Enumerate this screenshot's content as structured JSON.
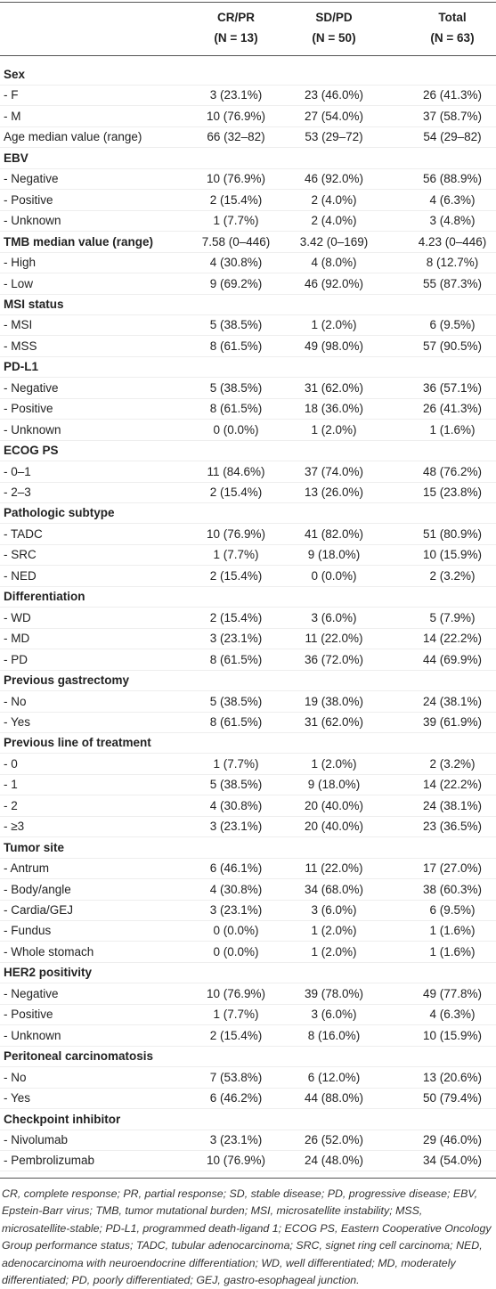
{
  "table": {
    "header": [
      [
        "",
        ""
      ],
      [
        "CR/PR",
        "(N = 13)"
      ],
      [
        "SD/PD",
        "(N = 50)"
      ],
      [
        "Total",
        "(N = 63)"
      ]
    ],
    "rows": [
      {
        "heading": true,
        "cells": [
          "Sex"
        ]
      },
      {
        "cells": [
          "- F",
          "3 (23.1%)",
          "23 (46.0%)",
          "26 (41.3%)"
        ]
      },
      {
        "cells": [
          "- M",
          "10 (76.9%)",
          "27 (54.0%)",
          "37 (58.7%)"
        ]
      },
      {
        "cells": [
          "Age median value (range)",
          "66 (32–82)",
          "53 (29–72)",
          "54 (29–82)"
        ]
      },
      {
        "heading": true,
        "cells": [
          "EBV"
        ]
      },
      {
        "cells": [
          "- Negative",
          "10 (76.9%)",
          "46 (92.0%)",
          "56 (88.9%)"
        ]
      },
      {
        "cells": [
          "- Positive",
          "2 (15.4%)",
          "2 (4.0%)",
          "4 (6.3%)"
        ]
      },
      {
        "cells": [
          "- Unknown",
          "1 (7.7%)",
          "2 (4.0%)",
          "3 (4.8%)"
        ]
      },
      {
        "heading": true,
        "cells": [
          "TMB median value (range)",
          "7.58 (0–446)",
          "3.42 (0–169)",
          "4.23 (0–446)"
        ]
      },
      {
        "cells": [
          "- High",
          "4 (30.8%)",
          "4 (8.0%)",
          "8 (12.7%)"
        ]
      },
      {
        "cells": [
          "- Low",
          "9 (69.2%)",
          "46 (92.0%)",
          "55 (87.3%)"
        ]
      },
      {
        "heading": true,
        "cells": [
          "MSI status"
        ]
      },
      {
        "cells": [
          "- MSI",
          "5 (38.5%)",
          "1 (2.0%)",
          "6 (9.5%)"
        ]
      },
      {
        "cells": [
          "- MSS",
          "8 (61.5%)",
          "49 (98.0%)",
          "57 (90.5%)"
        ]
      },
      {
        "heading": true,
        "cells": [
          "PD-L1"
        ]
      },
      {
        "cells": [
          "- Negative",
          "5 (38.5%)",
          "31 (62.0%)",
          "36 (57.1%)"
        ]
      },
      {
        "cells": [
          "- Positive",
          "8 (61.5%)",
          "18 (36.0%)",
          "26 (41.3%)"
        ]
      },
      {
        "cells": [
          "- Unknown",
          "0 (0.0%)",
          "1 (2.0%)",
          "1 (1.6%)"
        ]
      },
      {
        "heading": true,
        "cells": [
          "ECOG PS"
        ]
      },
      {
        "cells": [
          "- 0–1",
          "11 (84.6%)",
          "37 (74.0%)",
          "48 (76.2%)"
        ]
      },
      {
        "cells": [
          "- 2–3",
          "2 (15.4%)",
          "13 (26.0%)",
          "15 (23.8%)"
        ]
      },
      {
        "heading": true,
        "cells": [
          "Pathologic subtype"
        ]
      },
      {
        "cells": [
          "- TADC",
          "10 (76.9%)",
          "41 (82.0%)",
          "51 (80.9%)"
        ]
      },
      {
        "cells": [
          "- SRC",
          "1 (7.7%)",
          "9 (18.0%)",
          "10 (15.9%)"
        ]
      },
      {
        "cells": [
          "- NED",
          "2 (15.4%)",
          "0 (0.0%)",
          "2 (3.2%)"
        ]
      },
      {
        "heading": true,
        "cells": [
          "Differentiation"
        ]
      },
      {
        "cells": [
          "- WD",
          "2 (15.4%)",
          "3 (6.0%)",
          "5 (7.9%)"
        ]
      },
      {
        "cells": [
          "- MD",
          "3 (23.1%)",
          "11 (22.0%)",
          "14 (22.2%)"
        ]
      },
      {
        "cells": [
          "- PD",
          "8 (61.5%)",
          "36 (72.0%)",
          "44 (69.9%)"
        ]
      },
      {
        "heading": true,
        "cells": [
          "Previous gastrectomy"
        ]
      },
      {
        "cells": [
          "- No",
          "5 (38.5%)",
          "19 (38.0%)",
          "24 (38.1%)"
        ]
      },
      {
        "cells": [
          "- Yes",
          "8 (61.5%)",
          "31 (62.0%)",
          "39 (61.9%)"
        ]
      },
      {
        "heading": true,
        "cells": [
          "Previous line of treatment"
        ]
      },
      {
        "cells": [
          "- 0",
          "1 (7.7%)",
          "1 (2.0%)",
          "2 (3.2%)"
        ]
      },
      {
        "cells": [
          "- 1",
          "5 (38.5%)",
          "9 (18.0%)",
          "14 (22.2%)"
        ]
      },
      {
        "cells": [
          "- 2",
          "4 (30.8%)",
          "20 (40.0%)",
          "24 (38.1%)"
        ]
      },
      {
        "cells": [
          "- ≥3",
          "3 (23.1%)",
          "20 (40.0%)",
          "23 (36.5%)"
        ]
      },
      {
        "heading": true,
        "cells": [
          "Tumor site"
        ]
      },
      {
        "cells": [
          "- Antrum",
          "6 (46.1%)",
          "11 (22.0%)",
          "17 (27.0%)"
        ]
      },
      {
        "cells": [
          "- Body/angle",
          "4 (30.8%)",
          "34 (68.0%)",
          "38 (60.3%)"
        ]
      },
      {
        "cells": [
          "- Cardia/GEJ",
          "3 (23.1%)",
          "3 (6.0%)",
          "6 (9.5%)"
        ]
      },
      {
        "cells": [
          "- Fundus",
          "0 (0.0%)",
          "1 (2.0%)",
          "1 (1.6%)"
        ]
      },
      {
        "cells": [
          "- Whole stomach",
          "0 (0.0%)",
          "1 (2.0%)",
          "1 (1.6%)"
        ]
      },
      {
        "heading": true,
        "cells": [
          "HER2 positivity"
        ]
      },
      {
        "cells": [
          "- Negative",
          "10 (76.9%)",
          "39 (78.0%)",
          "49 (77.8%)"
        ]
      },
      {
        "cells": [
          "- Positive",
          "1 (7.7%)",
          "3 (6.0%)",
          "4 (6.3%)"
        ]
      },
      {
        "cells": [
          "- Unknown",
          "2 (15.4%)",
          "8 (16.0%)",
          "10 (15.9%)"
        ]
      },
      {
        "heading": true,
        "cells": [
          "Peritoneal carcinomatosis"
        ]
      },
      {
        "cells": [
          "- No",
          "7 (53.8%)",
          "6 (12.0%)",
          "13 (20.6%)"
        ]
      },
      {
        "cells": [
          "- Yes",
          "6 (46.2%)",
          "44 (88.0%)",
          "50 (79.4%)"
        ]
      },
      {
        "heading": true,
        "cells": [
          "Checkpoint inhibitor"
        ]
      },
      {
        "cells": [
          "- Nivolumab",
          "3 (23.1%)",
          "26 (52.0%)",
          "29 (46.0%)"
        ]
      },
      {
        "cells": [
          "- Pembrolizumab",
          "10 (76.9%)",
          "24 (48.0%)",
          "34 (54.0%)"
        ]
      }
    ],
    "footnote": "CR, complete response; PR, partial response; SD, stable disease; PD, progressive disease; EBV, Epstein-Barr virus; TMB, tumor mutational burden; MSI, microsatellite instability; MSS, microsatellite-stable; PD-L1, programmed death-ligand 1; ECOG PS, Eastern Cooperative Oncology Group performance status; TADC, tubular adenocarcinoma; SRC, signet ring cell carcinoma; NED, adenocarcinoma with neuroendocrine differentiation; WD, well differentiated; MD, moderately differentiated; PD, poorly differentiated; GEJ, gastro-esophageal junction."
  }
}
